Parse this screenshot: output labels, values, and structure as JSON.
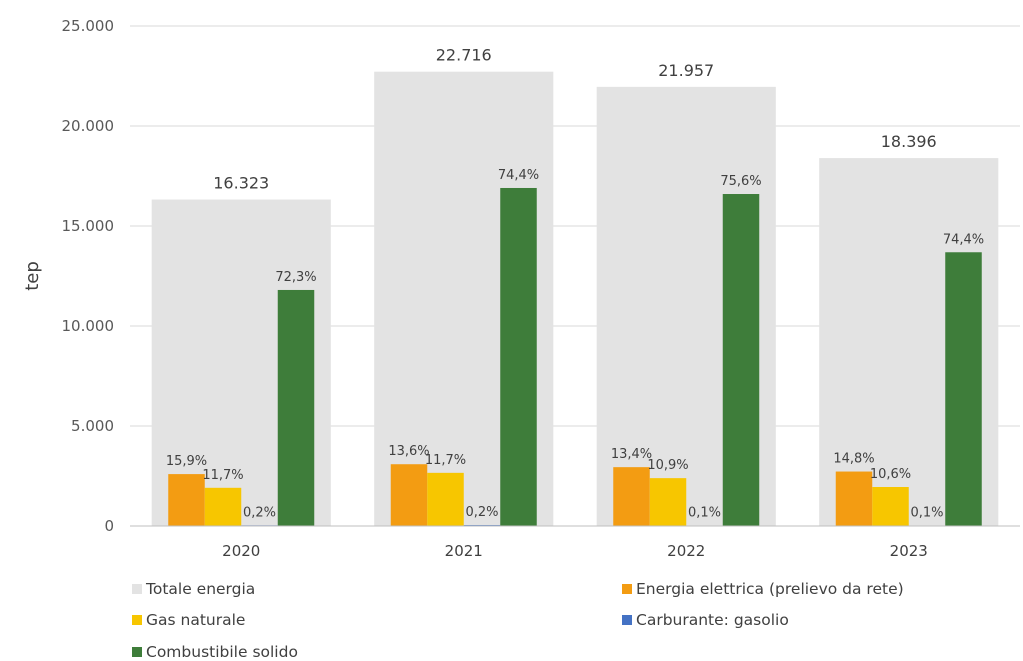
{
  "chart_data": {
    "type": "bar",
    "ylabel": "tep",
    "ylim": [
      0,
      25000
    ],
    "yticks": [
      0,
      5000,
      10000,
      15000,
      20000,
      25000
    ],
    "ytick_labels": [
      "0",
      "5.000",
      "10.000",
      "15.000",
      "20.000",
      "25.000"
    ],
    "grid": true,
    "legend_position": "bottom",
    "categories": [
      "2020",
      "2021",
      "2022",
      "2023"
    ],
    "total_series": {
      "name": "Totale energia",
      "color": "#e3e3e3",
      "values": [
        16323,
        22716,
        21957,
        18396
      ],
      "labels": [
        "16.323",
        "22.716",
        "21.957",
        "18.396"
      ]
    },
    "series": [
      {
        "name": "Energia elettrica (prelievo da rete)",
        "color": "#f39c12",
        "values": [
          2595,
          3089,
          2942,
          2723
        ],
        "labels": [
          "15,9%",
          "13,6%",
          "13,4%",
          "14,8%"
        ]
      },
      {
        "name": "Gas naturale",
        "color": "#f7c600",
        "values": [
          1910,
          2658,
          2393,
          1950
        ],
        "labels": [
          "11,7%",
          "11,7%",
          "10,9%",
          "10,6%"
        ]
      },
      {
        "name": "Carburante: gasolio",
        "color": "#4472c4",
        "values": [
          33,
          45,
          22,
          18
        ],
        "labels": [
          "0,2%",
          "0,2%",
          "0,1%",
          "0,1%"
        ]
      },
      {
        "name": "Combustibile solido",
        "color": "#3e7d3a",
        "values": [
          11802,
          16901,
          16599,
          13687
        ],
        "labels": [
          "72,3%",
          "74,4%",
          "75,6%",
          "74,4%"
        ]
      }
    ]
  }
}
